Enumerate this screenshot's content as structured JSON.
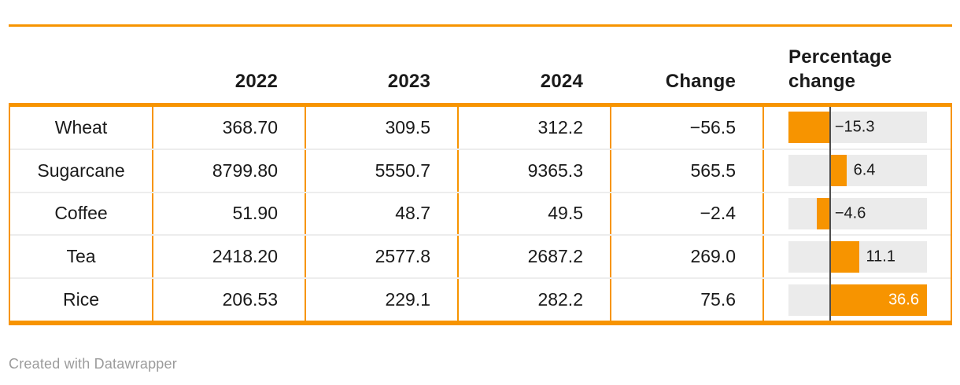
{
  "table": {
    "columns": [
      "",
      "2022",
      "2023",
      "2024",
      "Change",
      "Percentage change"
    ],
    "rows": [
      {
        "label": "Wheat",
        "y2022": "368.70",
        "y2023": "309.5",
        "y2024": "312.2",
        "change": "−56.5",
        "pct_label": "−15.3",
        "pct": -15.3
      },
      {
        "label": "Sugarcane",
        "y2022": "8799.80",
        "y2023": "5550.7",
        "y2024": "9365.3",
        "change": "565.5",
        "pct_label": "6.4",
        "pct": 6.4
      },
      {
        "label": "Coffee",
        "y2022": "51.90",
        "y2023": "48.7",
        "y2024": "49.5",
        "change": "−2.4",
        "pct_label": "−4.6",
        "pct": -4.6
      },
      {
        "label": "Tea",
        "y2022": "2418.20",
        "y2023": "2577.8",
        "y2024": "2687.2",
        "change": "269.0",
        "pct_label": "11.1",
        "pct": 11.1
      },
      {
        "label": "Rice",
        "y2022": "206.53",
        "y2023": "229.1",
        "y2024": "282.2",
        "change": "75.6",
        "pct_label": "36.6",
        "pct": 36.6
      }
    ]
  },
  "chart_data": {
    "type": "table",
    "columns": [
      "",
      "2022",
      "2023",
      "2024",
      "Change",
      "Percentage change"
    ],
    "categories": [
      "Wheat",
      "Sugarcane",
      "Coffee",
      "Tea",
      "Rice"
    ],
    "series": [
      {
        "name": "2022",
        "values": [
          368.7,
          8799.8,
          51.9,
          2418.2,
          206.53
        ]
      },
      {
        "name": "2023",
        "values": [
          309.5,
          5550.7,
          48.7,
          2577.8,
          229.1
        ]
      },
      {
        "name": "2024",
        "values": [
          312.2,
          9365.3,
          49.5,
          2687.2,
          282.2
        ]
      },
      {
        "name": "Change",
        "values": [
          -56.5,
          565.5,
          -2.4,
          269.0,
          75.6
        ]
      },
      {
        "name": "Percentage change",
        "values": [
          -15.3,
          6.4,
          -4.6,
          11.1,
          36.6
        ]
      }
    ],
    "bar_column": "Percentage change",
    "bar_axis_range": [
      -15.3,
      36.6
    ],
    "legend_position": "none",
    "grid": "off"
  },
  "colors": {
    "accent_orange": "#F79400",
    "bar_track_gray": "#EBEBEB",
    "baseline_gray": "#4D4D4D",
    "row_separator": "#EDEDED",
    "text": "#1A1A1A",
    "bar_label_inside": "#FFFFFF",
    "footer_text": "#9B9B9B"
  },
  "footer": {
    "attribution": "Created with Datawrapper"
  }
}
